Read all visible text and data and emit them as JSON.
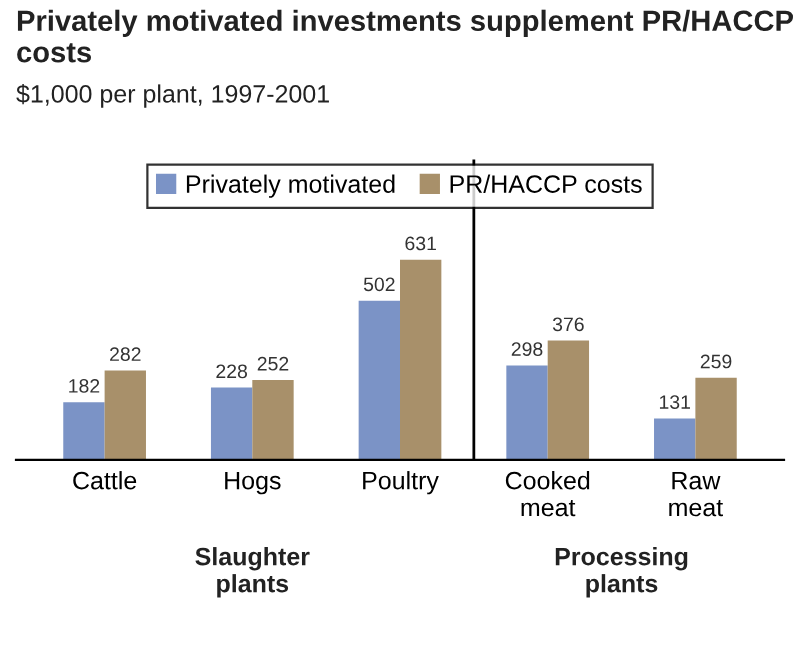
{
  "chart_data": {
    "type": "bar",
    "title": "Privately motivated investments supplement PR/HACCP costs",
    "subtitle": "$1,000 per plant, 1997-2001",
    "categories": [
      "Cattle",
      "Hogs",
      "Poultry",
      "Cooked meat",
      "Raw meat"
    ],
    "series": [
      {
        "name": "Privately motivated",
        "color": "#7b93c6",
        "values": [
          182,
          228,
          502,
          298,
          131
        ]
      },
      {
        "name": "PR/HACCP costs",
        "color": "#a8906a",
        "values": [
          282,
          252,
          631,
          376,
          259
        ]
      }
    ],
    "data_labels": true,
    "legend": "top",
    "grid": false,
    "annotations": [
      "Slaughter plants",
      "Processing plants"
    ]
  }
}
